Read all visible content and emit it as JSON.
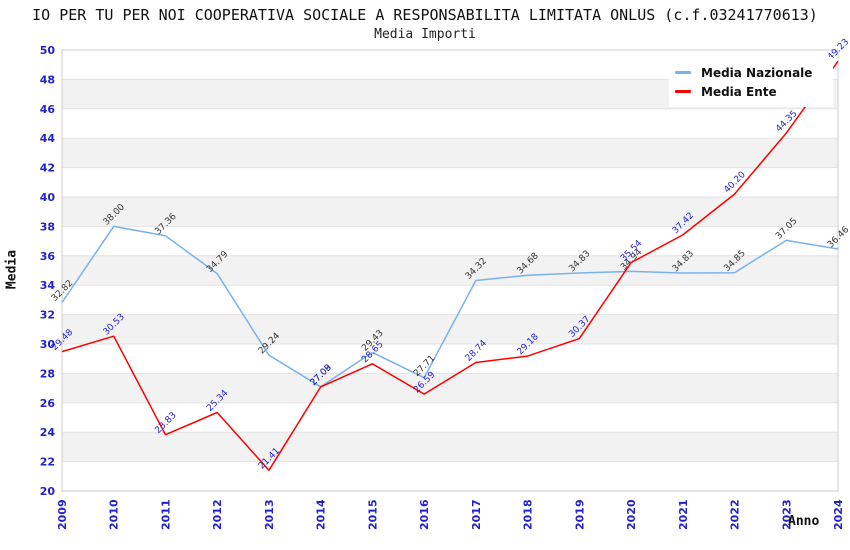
{
  "page": {
    "title": "IO PER TU PER NOI COOPERATIVA SOCIALE A RESPONSABILITA LIMITATA ONLUS (c.f.03241770613)",
    "subtitle": "Media Importi"
  },
  "chart_data": {
    "type": "line",
    "title": "IO PER TU PER NOI COOPERATIVA SOCIALE A RESPONSABILITA LIMITATA ONLUS (c.f.03241770613)",
    "subtitle": "Media Importi",
    "xlabel": "Anno",
    "ylabel": "Media",
    "x": [
      2009,
      2010,
      2011,
      2012,
      2013,
      2014,
      2015,
      2016,
      2017,
      2018,
      2019,
      2020,
      2021,
      2022,
      2023,
      2024
    ],
    "ylim": [
      20,
      50
    ],
    "ytick_step": 2,
    "grid": true,
    "legend_position": "top-right",
    "series": [
      {
        "name": "Media Nazionale",
        "color": "#77b2ec",
        "label_color": "#333333",
        "values": [
          32.82,
          38.0,
          37.36,
          34.79,
          29.24,
          27.09,
          29.43,
          27.71,
          34.32,
          34.68,
          34.83,
          34.94,
          34.83,
          34.85,
          37.05,
          36.46
        ]
      },
      {
        "name": "Media Ente",
        "color": "#ff0000",
        "label_color": "#2222cc",
        "values": [
          29.48,
          30.53,
          23.83,
          25.34,
          21.41,
          27.08,
          28.65,
          26.59,
          28.74,
          29.18,
          30.37,
          35.54,
          37.42,
          40.2,
          44.35,
          49.23
        ]
      }
    ],
    "style": {
      "tick_label_color": "#2222cc",
      "band_fill": "#f2f2f2",
      "grid_line_color": "#e3e3e3",
      "plot_border_color": "#cccccc"
    }
  }
}
